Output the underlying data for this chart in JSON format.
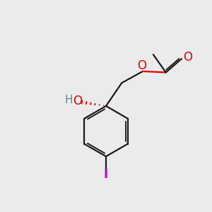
{
  "bg_color": "#ebebeb",
  "bond_color": "#1a1a1a",
  "o_color": "#e00000",
  "h_color": "#5a8a8a",
  "i_color": "#cc00cc",
  "line_width": 1.6,
  "figsize": [
    3.0,
    3.0
  ],
  "dpi": 100,
  "xlim": [
    0,
    10
  ],
  "ylim": [
    0,
    10
  ]
}
